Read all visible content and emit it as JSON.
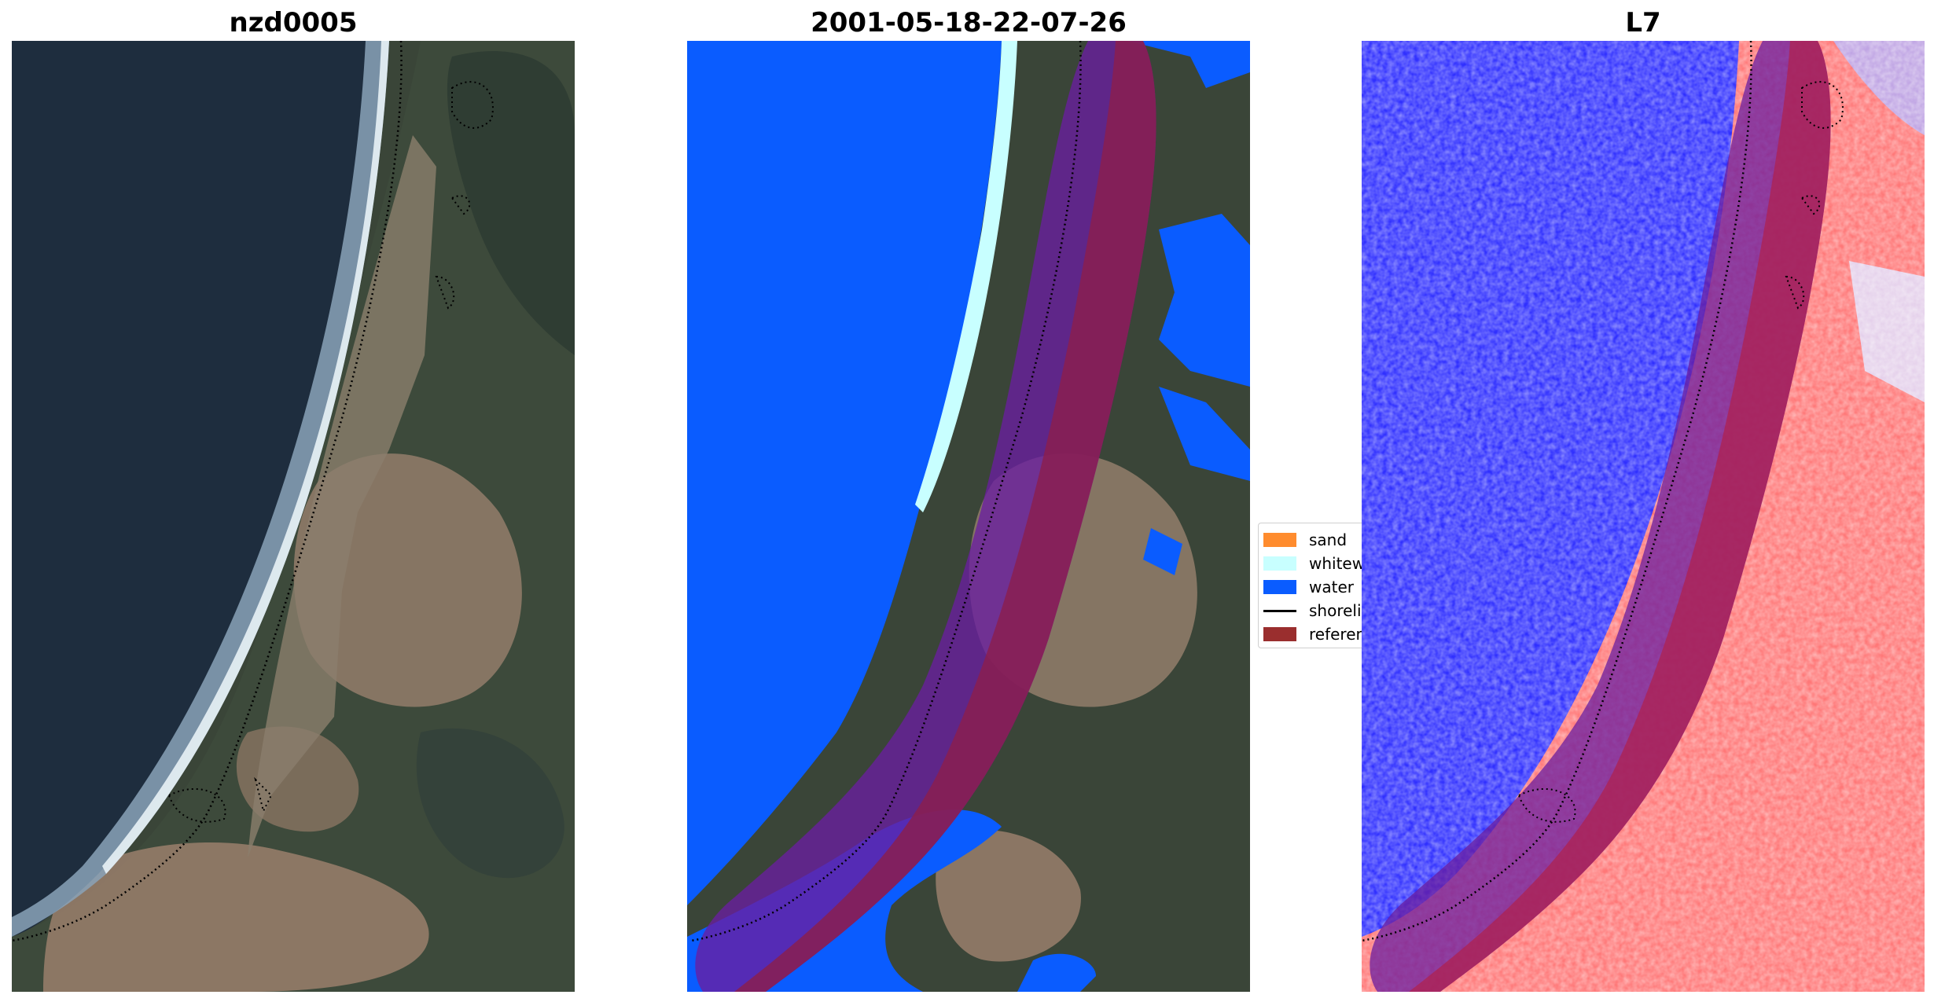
{
  "panels": [
    {
      "title": "nzd0005"
    },
    {
      "title": "2001-05-18-22-07-26"
    },
    {
      "title": "L7"
    }
  ],
  "legend": {
    "items": [
      {
        "label": "sand",
        "color": "#ff8c2e"
      },
      {
        "label": "whitewater",
        "color": "#c8ffff"
      },
      {
        "label": "water",
        "color": "#0a5cff"
      },
      {
        "label": "shoreline",
        "color": "#000000"
      },
      {
        "label": "reference",
        "color": "#9a2e2e"
      }
    ]
  }
}
